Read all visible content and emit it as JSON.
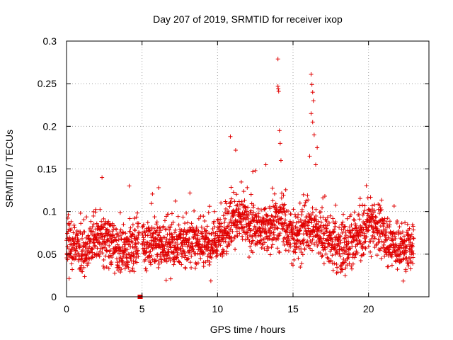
{
  "chart_data": {
    "type": "scatter",
    "title": "Day 207 of 2019, SRMTID for receiver ixop",
    "xlabel": "GPS time / hours",
    "ylabel": "SRMTID / TECUs",
    "xlim": [
      0,
      24
    ],
    "ylim": [
      0,
      0.3
    ],
    "xticks": [
      0,
      5,
      10,
      15,
      20
    ],
    "xtick_labels": [
      "0",
      "5",
      "10",
      "15",
      "20"
    ],
    "yticks": [
      0,
      0.05,
      0.1,
      0.15,
      0.2,
      0.25,
      0.3
    ],
    "ytick_labels": [
      "0",
      "0.05",
      "0.1",
      "0.15",
      "0.2",
      "0.25",
      "0.3"
    ],
    "grid": true,
    "marker": "plus",
    "color": "#e00000",
    "series": [
      {
        "name": "SRMTID",
        "trend": [
          [
            0.0,
            0.065
          ],
          [
            0.5,
            0.058
          ],
          [
            1.0,
            0.052
          ],
          [
            1.5,
            0.058
          ],
          [
            2.0,
            0.068
          ],
          [
            2.5,
            0.072
          ],
          [
            3.0,
            0.062
          ],
          [
            3.5,
            0.056
          ],
          [
            4.0,
            0.053
          ],
          [
            4.5,
            0.058
          ],
          [
            4.9,
            0.06
          ],
          [
            5.0,
            0.062
          ],
          [
            5.5,
            0.058
          ],
          [
            6.0,
            0.06
          ],
          [
            6.5,
            0.063
          ],
          [
            7.0,
            0.062
          ],
          [
            7.5,
            0.06
          ],
          [
            8.0,
            0.062
          ],
          [
            8.5,
            0.064
          ],
          [
            9.0,
            0.062
          ],
          [
            9.5,
            0.06
          ],
          [
            10.0,
            0.062
          ],
          [
            10.5,
            0.08
          ],
          [
            11.0,
            0.09
          ],
          [
            11.5,
            0.088
          ],
          [
            12.0,
            0.085
          ],
          [
            12.5,
            0.082
          ],
          [
            13.0,
            0.082
          ],
          [
            13.5,
            0.085
          ],
          [
            14.0,
            0.088
          ],
          [
            14.5,
            0.08
          ],
          [
            15.0,
            0.07
          ],
          [
            15.5,
            0.072
          ],
          [
            16.0,
            0.082
          ],
          [
            16.5,
            0.08
          ],
          [
            17.0,
            0.072
          ],
          [
            17.5,
            0.065
          ],
          [
            18.0,
            0.06
          ],
          [
            18.5,
            0.058
          ],
          [
            19.0,
            0.062
          ],
          [
            19.5,
            0.072
          ],
          [
            20.0,
            0.082
          ],
          [
            20.5,
            0.08
          ],
          [
            21.0,
            0.075
          ],
          [
            21.5,
            0.065
          ],
          [
            22.0,
            0.055
          ],
          [
            22.5,
            0.058
          ],
          [
            23.0,
            0.06
          ]
        ],
        "gap": [
          4.8,
          5.0
        ],
        "peaks": [
          [
            10.85,
            0.188
          ],
          [
            11.2,
            0.172
          ],
          [
            12.5,
            0.148
          ],
          [
            13.2,
            0.155
          ],
          [
            14.0,
            0.279
          ],
          [
            14.0,
            0.247
          ],
          [
            14.02,
            0.244
          ],
          [
            14.05,
            0.241
          ],
          [
            14.1,
            0.195
          ],
          [
            14.15,
            0.18
          ],
          [
            14.2,
            0.16
          ],
          [
            16.2,
            0.261
          ],
          [
            16.25,
            0.249
          ],
          [
            16.3,
            0.24
          ],
          [
            16.35,
            0.23
          ],
          [
            16.2,
            0.215
          ],
          [
            16.3,
            0.205
          ],
          [
            16.1,
            0.165
          ],
          [
            16.5,
            0.155
          ],
          [
            16.4,
            0.19
          ],
          [
            16.6,
            0.175
          ],
          [
            2.35,
            0.14
          ],
          [
            4.15,
            0.13
          ],
          [
            6.1,
            0.128
          ]
        ],
        "flagged": [
          [
            4.85,
            0.0
          ],
          [
            4.9,
            0.0
          ]
        ]
      }
    ]
  }
}
